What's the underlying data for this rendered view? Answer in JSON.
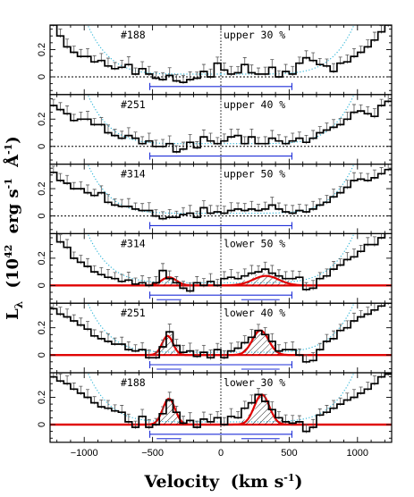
{
  "figure": {
    "xlabel_text": "Velocity",
    "xlabel_unit": "(km s",
    "xlabel_exp": "-1",
    "xlabel_close": ")",
    "ylabel_L": "L",
    "ylabel_sub": "λ",
    "ylabel_unit": "(10",
    "ylabel_exp1": "42",
    "ylabel_erg": "erg s",
    "ylabel_exp2": "-1",
    "ylabel_ang": "Å",
    "ylabel_exp3": "-1",
    "ylabel_close": ")"
  },
  "chart_data": {
    "type": "line",
    "subtype": "stacked step spectra",
    "xlabel": "Velocity (km s⁻¹)",
    "ylabel": "Lλ (10⁴² erg s⁻¹ Å⁻¹)",
    "xlim": [
      -1250,
      1250
    ],
    "ylim": [
      -0.13,
      0.38
    ],
    "x_ticks": [
      -1000,
      -500,
      0,
      500,
      1000
    ],
    "y_ticks": [
      0,
      0.2
    ],
    "vertical_line_x": 0,
    "bracket_range": [
      -520,
      520
    ],
    "colors": {
      "spectrum": "#000000",
      "fit": "#e00000",
      "bracket": "#1f2fd8",
      "envelope": "#27b3d6",
      "hatch": "#000000"
    },
    "bins_x": [
      -1225,
      -1175,
      -1125,
      -1075,
      -1025,
      -975,
      -925,
      -875,
      -825,
      -775,
      -725,
      -675,
      -625,
      -575,
      -525,
      -475,
      -425,
      -375,
      -325,
      -275,
      -225,
      -175,
      -125,
      -75,
      -25,
      25,
      75,
      125,
      175,
      225,
      275,
      325,
      375,
      425,
      475,
      525,
      575,
      625,
      675,
      725,
      775,
      825,
      875,
      925,
      975,
      1025,
      1075,
      1125,
      1175,
      1225
    ],
    "panels": [
      {
        "label": "#188",
        "tag": "upper 30 %",
        "fit": false,
        "values": [
          0.38,
          0.3,
          0.22,
          0.18,
          0.15,
          0.15,
          0.11,
          0.12,
          0.08,
          0.06,
          0.07,
          0.09,
          0.02,
          0.06,
          0.02,
          -0.01,
          -0.02,
          0.01,
          -0.03,
          -0.04,
          -0.02,
          -0.01,
          0.04,
          0.0,
          0.1,
          0.05,
          0.02,
          0.03,
          0.09,
          0.03,
          0.02,
          0.02,
          0.07,
          0.0,
          0.04,
          0.02,
          0.1,
          0.14,
          0.12,
          0.09,
          0.08,
          0.04,
          0.1,
          0.11,
          0.15,
          0.18,
          0.22,
          0.27,
          0.33,
          0.38
        ]
      },
      {
        "label": "#251",
        "tag": "upper 40 %",
        "fit": false,
        "values": [
          0.3,
          0.27,
          0.24,
          0.19,
          0.2,
          0.2,
          0.16,
          0.16,
          0.1,
          0.08,
          0.06,
          0.08,
          0.06,
          0.02,
          0.04,
          0.0,
          0.0,
          0.02,
          -0.04,
          -0.02,
          0.03,
          -0.01,
          0.07,
          0.04,
          0.02,
          0.04,
          0.07,
          0.08,
          0.02,
          0.07,
          0.02,
          0.02,
          0.06,
          0.04,
          0.02,
          0.04,
          0.06,
          0.03,
          0.06,
          0.1,
          0.12,
          0.14,
          0.16,
          0.2,
          0.25,
          0.26,
          0.24,
          0.22,
          0.3,
          0.33
        ]
      },
      {
        "label": "#314",
        "tag": "upper 50 %",
        "fit": false,
        "values": [
          0.32,
          0.26,
          0.24,
          0.2,
          0.2,
          0.17,
          0.15,
          0.17,
          0.1,
          0.08,
          0.07,
          0.07,
          0.05,
          0.04,
          0.04,
          0.0,
          -0.02,
          -0.01,
          -0.01,
          0.01,
          0.02,
          -0.01,
          0.06,
          0.02,
          0.03,
          0.02,
          0.04,
          0.05,
          0.04,
          0.05,
          0.04,
          0.05,
          0.08,
          0.05,
          0.03,
          0.02,
          0.04,
          0.03,
          0.05,
          0.08,
          0.1,
          0.14,
          0.17,
          0.21,
          0.26,
          0.27,
          0.26,
          0.28,
          0.31,
          0.34
        ]
      },
      {
        "label": "#314",
        "tag": "lower 50 %",
        "fit": true,
        "fit_peaks": [
          {
            "center": -380,
            "amp": 0.06,
            "sigma": 55
          },
          {
            "center": 330,
            "amp": 0.07,
            "sigma": 95
          }
        ],
        "values": [
          0.4,
          0.32,
          0.28,
          0.2,
          0.17,
          0.14,
          0.1,
          0.08,
          0.06,
          0.05,
          0.03,
          0.04,
          0.01,
          0.02,
          0.0,
          0.02,
          0.11,
          0.05,
          0.02,
          -0.02,
          -0.04,
          0.02,
          0.0,
          0.03,
          0.0,
          0.05,
          0.06,
          0.05,
          0.07,
          0.09,
          0.1,
          0.12,
          0.09,
          0.07,
          0.05,
          0.05,
          0.06,
          -0.03,
          -0.02,
          0.05,
          0.07,
          0.12,
          0.15,
          0.19,
          0.21,
          0.25,
          0.3,
          0.3,
          0.35,
          0.4
        ]
      },
      {
        "label": "#251",
        "tag": "lower 40 %",
        "fit": true,
        "fit_peaks": [
          {
            "center": -390,
            "amp": 0.14,
            "sigma": 40
          },
          {
            "center": 290,
            "amp": 0.18,
            "sigma": 60
          }
        ],
        "values": [
          0.34,
          0.3,
          0.28,
          0.25,
          0.22,
          0.19,
          0.14,
          0.12,
          0.1,
          0.08,
          0.08,
          0.04,
          0.03,
          0.04,
          -0.02,
          -0.02,
          0.06,
          0.17,
          0.07,
          0.02,
          0.03,
          -0.01,
          0.02,
          -0.02,
          0.04,
          -0.02,
          0.03,
          0.05,
          0.09,
          0.13,
          0.18,
          0.15,
          0.1,
          0.03,
          0.04,
          0.04,
          0.0,
          -0.05,
          -0.04,
          0.04,
          0.1,
          0.12,
          0.18,
          0.2,
          0.25,
          0.28,
          0.3,
          0.33,
          0.36,
          0.38
        ]
      },
      {
        "label": "#188",
        "tag": "lower 30 %",
        "fit": true,
        "fit_peaks": [
          {
            "center": -380,
            "amp": 0.19,
            "sigma": 45
          },
          {
            "center": 300,
            "amp": 0.22,
            "sigma": 55
          }
        ],
        "values": [
          0.35,
          0.32,
          0.3,
          0.26,
          0.23,
          0.2,
          0.16,
          0.13,
          0.12,
          0.1,
          0.09,
          0.02,
          -0.02,
          0.06,
          -0.02,
          0.0,
          0.08,
          0.18,
          0.09,
          0.01,
          0.03,
          -0.02,
          0.04,
          0.02,
          0.05,
          0.0,
          0.06,
          0.05,
          0.12,
          0.16,
          0.22,
          0.17,
          0.11,
          0.05,
          0.02,
          0.01,
          0.02,
          -0.05,
          -0.02,
          0.07,
          0.09,
          0.12,
          0.15,
          0.18,
          0.2,
          0.23,
          0.26,
          0.3,
          0.35,
          0.37
        ]
      }
    ]
  }
}
